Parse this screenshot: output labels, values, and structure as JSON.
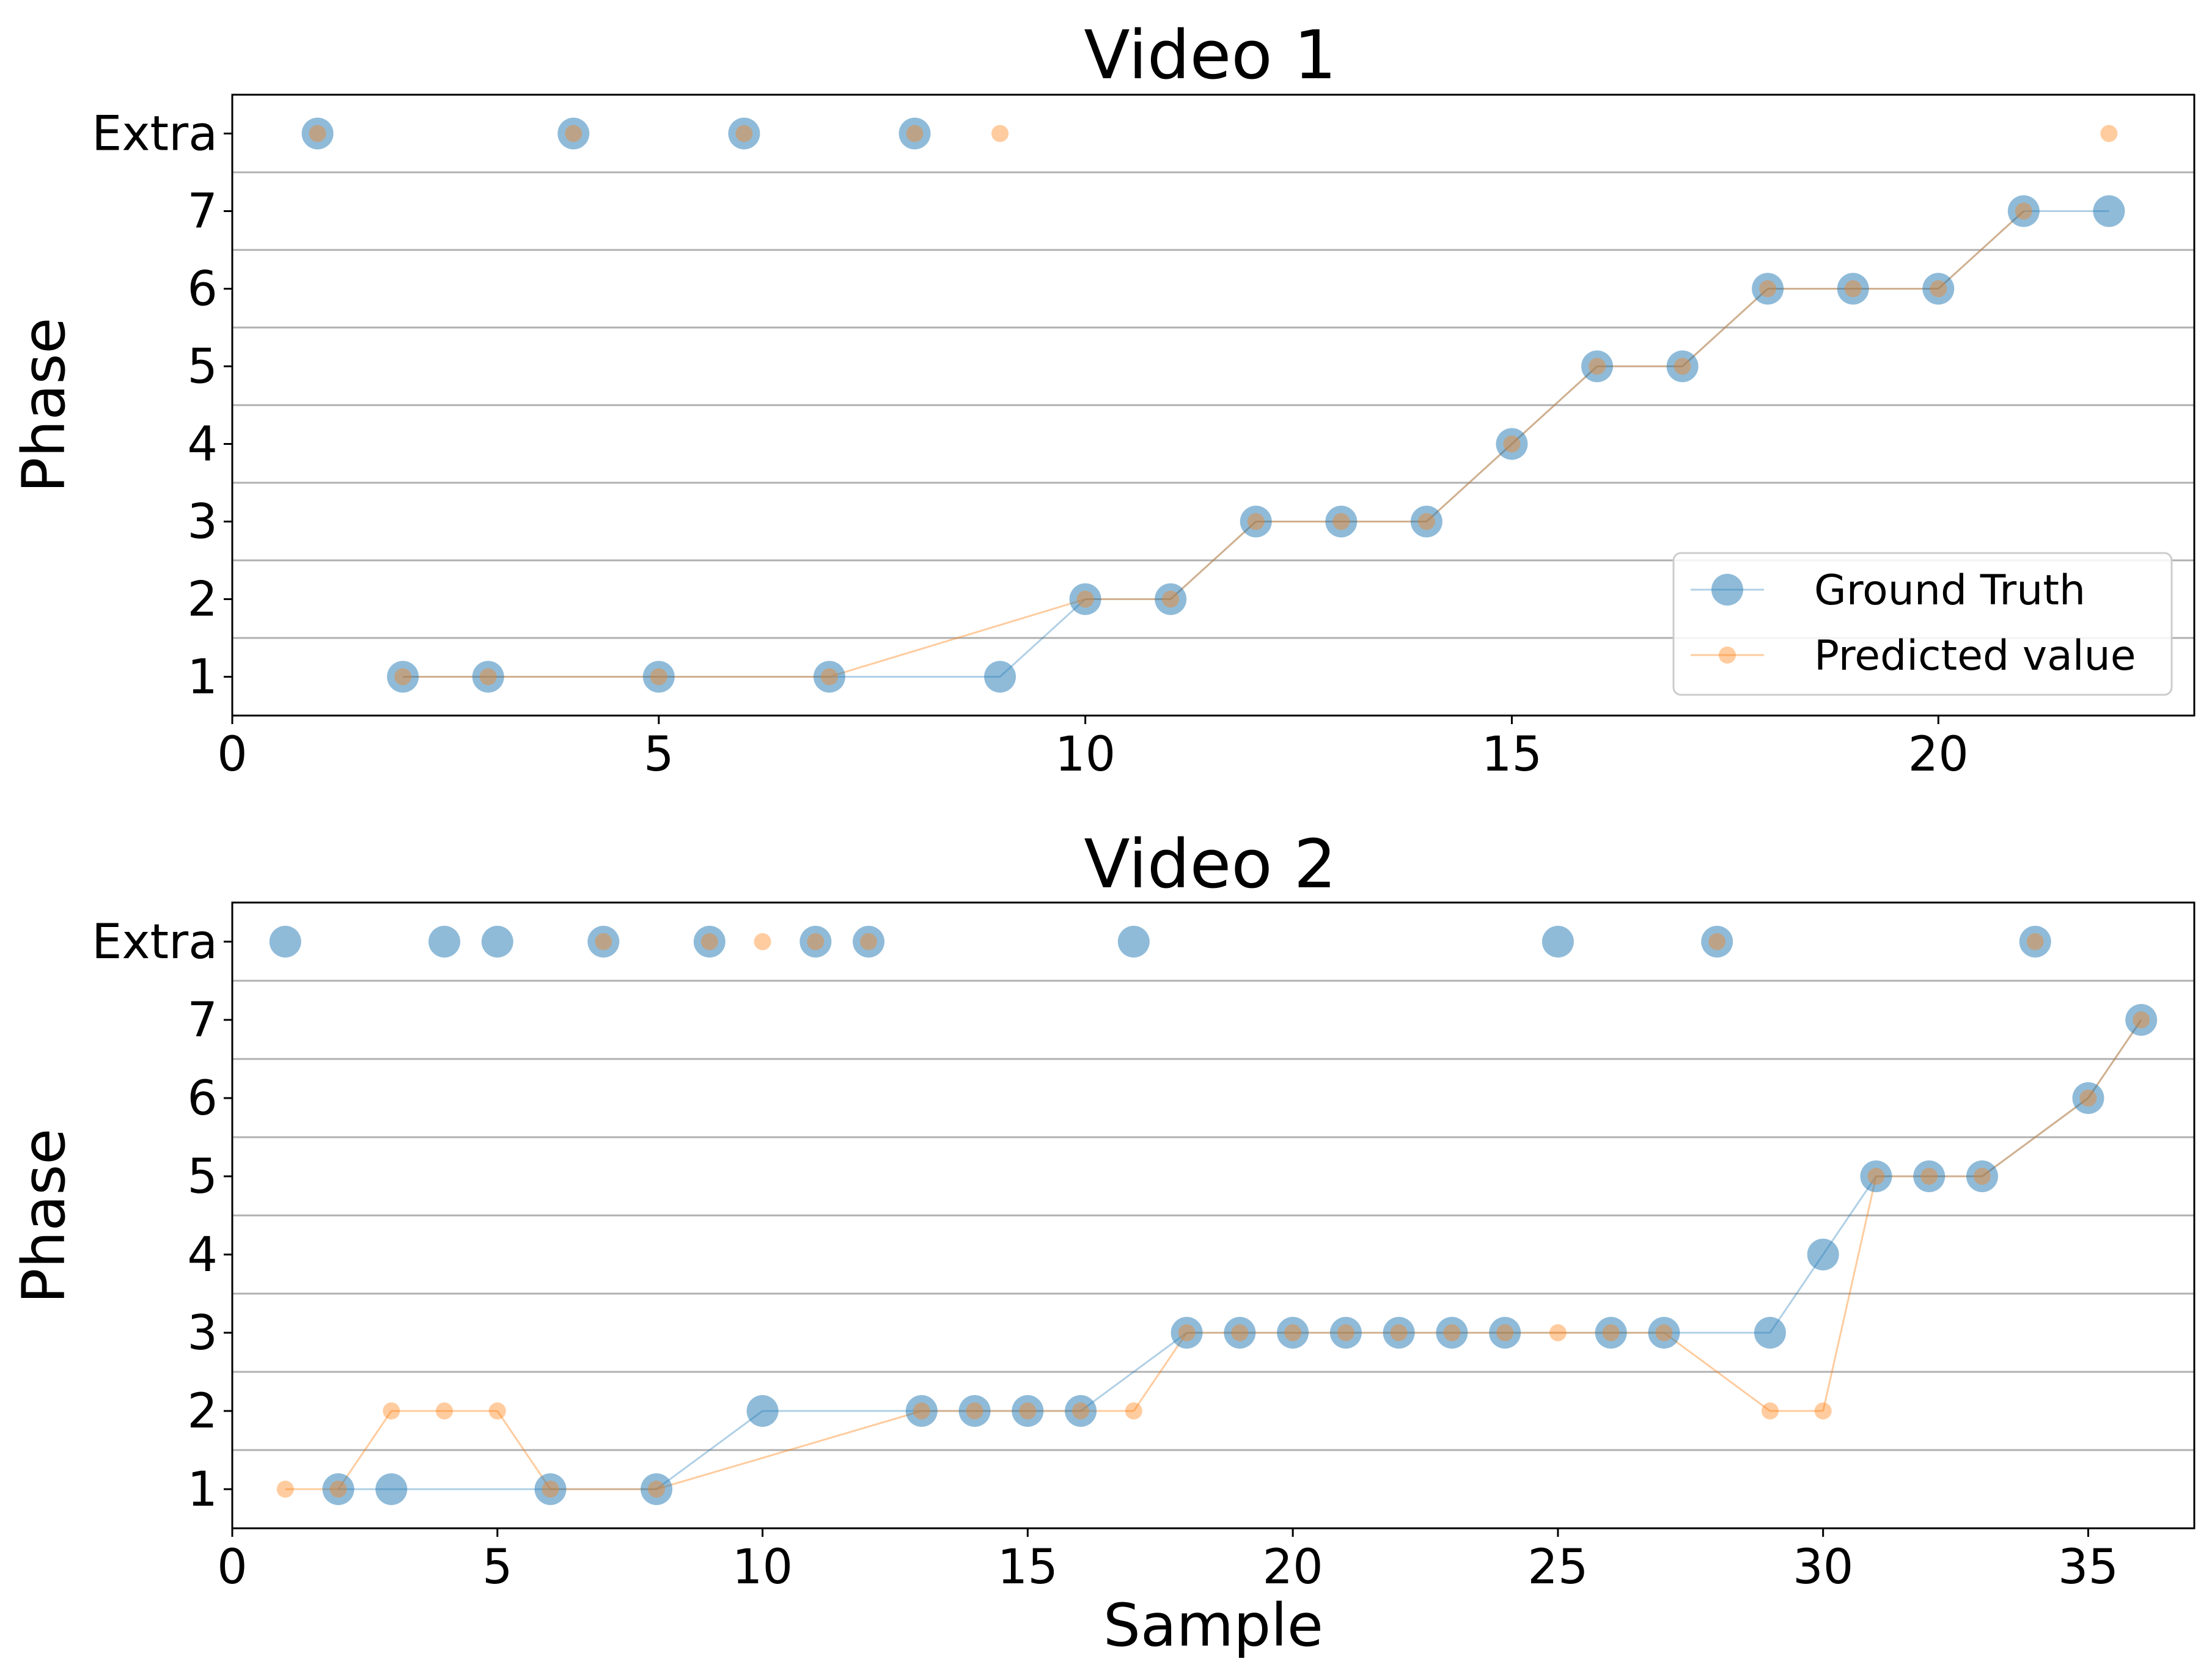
{
  "colors": {
    "ground_truth": "#1f77b4",
    "predicted": "#ff7f0e",
    "grid": "#b0b0b0",
    "axis": "#000000"
  },
  "chart_data": [
    {
      "type": "line",
      "title": "Video 1",
      "xlabel": "",
      "ylabel": "Phase",
      "xlim": [
        0,
        23
      ],
      "ylim": [
        0.5,
        8.5
      ],
      "xticks": [
        0,
        5,
        10,
        15,
        20
      ],
      "yticks": [
        1,
        2,
        3,
        4,
        5,
        6,
        7,
        8
      ],
      "ytick_labels": [
        "1",
        "2",
        "3",
        "4",
        "5",
        "6",
        "7",
        "Extra"
      ],
      "grid": "horizontal",
      "legend": "lower-right",
      "series": [
        {
          "name": "Ground Truth",
          "x": [
            1,
            2,
            3,
            4,
            5,
            6,
            7,
            8,
            9,
            10,
            11,
            12,
            13,
            14,
            15,
            16,
            17,
            18,
            19,
            20,
            21,
            22
          ],
          "y": [
            "Extra",
            1,
            1,
            "Extra",
            1,
            "Extra",
            1,
            "Extra",
            1,
            2,
            2,
            3,
            3,
            3,
            4,
            5,
            5,
            6,
            6,
            6,
            7,
            7
          ]
        },
        {
          "name": "Predicted value",
          "x": [
            1,
            2,
            3,
            4,
            5,
            6,
            7,
            8,
            9,
            10,
            11,
            12,
            13,
            14,
            15,
            16,
            17,
            18,
            19,
            20,
            21,
            22
          ],
          "y": [
            "Extra",
            1,
            1,
            "Extra",
            1,
            "Extra",
            1,
            "Extra",
            "Extra",
            2,
            2,
            3,
            3,
            3,
            4,
            5,
            5,
            6,
            6,
            6,
            7,
            "Extra"
          ]
        }
      ]
    },
    {
      "type": "line",
      "title": "Video 2",
      "xlabel": "Sample",
      "ylabel": "Phase",
      "xlim": [
        0,
        37
      ],
      "ylim": [
        0.5,
        8.5
      ],
      "xticks": [
        0,
        5,
        10,
        15,
        20,
        25,
        30,
        35
      ],
      "yticks": [
        1,
        2,
        3,
        4,
        5,
        6,
        7,
        8
      ],
      "ytick_labels": [
        "1",
        "2",
        "3",
        "4",
        "5",
        "6",
        "7",
        "Extra"
      ],
      "grid": "horizontal",
      "legend": "none",
      "series": [
        {
          "name": "Ground Truth",
          "x": [
            1,
            2,
            3,
            4,
            5,
            6,
            7,
            8,
            9,
            10,
            11,
            12,
            13,
            14,
            15,
            16,
            17,
            18,
            19,
            20,
            21,
            22,
            23,
            24,
            25,
            26,
            27,
            28,
            29,
            30,
            31,
            32,
            33,
            34,
            35,
            36
          ],
          "y": [
            "Extra",
            1,
            1,
            "Extra",
            "Extra",
            1,
            "Extra",
            1,
            "Extra",
            2,
            "Extra",
            "Extra",
            2,
            2,
            2,
            2,
            "Extra",
            3,
            3,
            3,
            3,
            3,
            3,
            3,
            "Extra",
            3,
            3,
            "Extra",
            3,
            4,
            5,
            5,
            5,
            "Extra",
            6,
            7
          ]
        },
        {
          "name": "Predicted value",
          "x": [
            1,
            2,
            3,
            4,
            5,
            6,
            7,
            8,
            9,
            10,
            11,
            12,
            13,
            14,
            15,
            16,
            17,
            18,
            19,
            20,
            21,
            22,
            23,
            24,
            25,
            26,
            27,
            28,
            29,
            30,
            31,
            32,
            33,
            34,
            35,
            36
          ],
          "y": [
            1,
            1,
            2,
            2,
            2,
            1,
            "Extra",
            1,
            "Extra",
            "Extra",
            "Extra",
            "Extra",
            2,
            2,
            2,
            2,
            2,
            3,
            3,
            3,
            3,
            3,
            3,
            3,
            3,
            3,
            3,
            "Extra",
            2,
            2,
            5,
            5,
            5,
            "Extra",
            6,
            7
          ]
        }
      ]
    }
  ]
}
